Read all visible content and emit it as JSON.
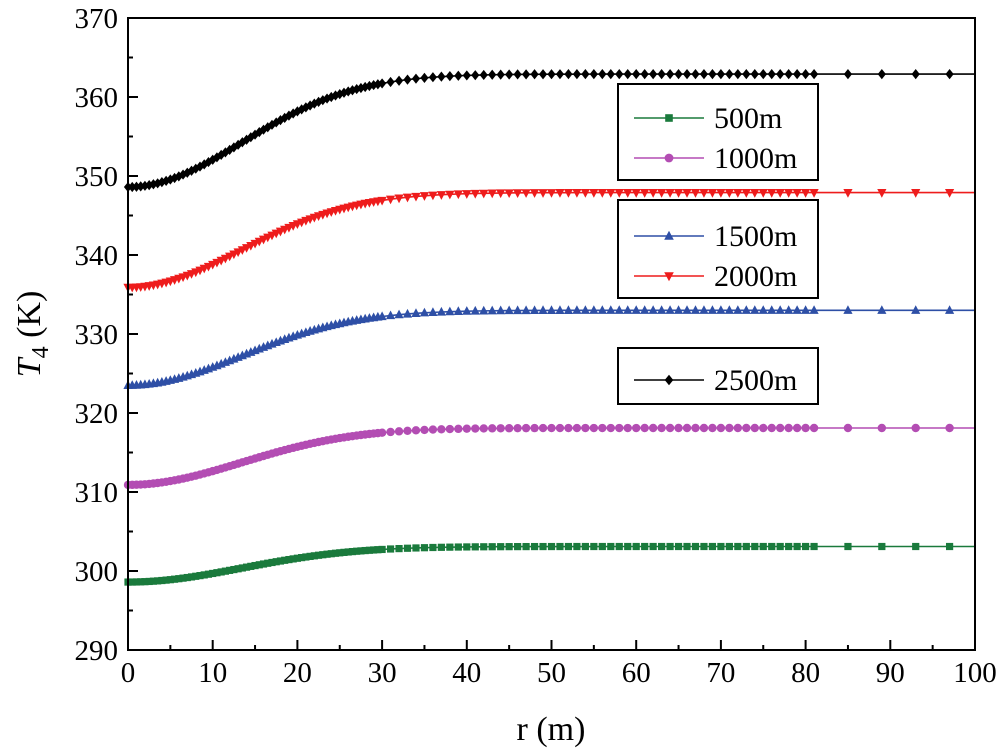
{
  "chart_data": {
    "type": "line",
    "title": "",
    "xlabel": "r (m)",
    "ylabel_main": "T",
    "ylabel_sub": "4",
    "ylabel_unit": " (K)",
    "xlim": [
      0,
      100
    ],
    "ylim": [
      290,
      370
    ],
    "xticks": [
      0,
      10,
      20,
      30,
      40,
      50,
      60,
      70,
      80,
      90,
      100
    ],
    "yticks": [
      290,
      300,
      310,
      320,
      330,
      340,
      350,
      360,
      370
    ],
    "grid": false,
    "x": [
      0,
      0.5,
      1,
      1.5,
      2,
      2.5,
      3,
      3.5,
      4,
      4.5,
      5,
      5.5,
      6,
      6.5,
      7,
      7.5,
      8,
      8.5,
      9,
      9.5,
      10,
      10.5,
      11,
      11.5,
      12,
      12.5,
      13,
      13.5,
      14,
      14.5,
      15,
      15.5,
      16,
      16.5,
      17,
      17.5,
      18,
      18.5,
      19,
      19.5,
      20,
      20.5,
      21,
      21.5,
      22,
      22.5,
      23,
      23.5,
      24,
      24.5,
      25,
      25.5,
      26,
      26.5,
      27,
      27.5,
      28,
      28.5,
      29,
      29.5,
      30,
      31,
      32,
      33,
      34,
      35,
      36,
      37,
      38,
      39,
      40,
      41,
      42,
      43,
      44,
      45,
      46,
      47,
      48,
      49,
      50,
      51,
      52,
      53,
      54,
      55,
      56,
      57,
      58,
      59,
      60,
      61,
      62,
      63,
      64,
      65,
      66,
      67,
      68,
      69,
      70,
      71,
      72,
      73,
      74,
      75,
      76,
      77,
      78,
      79,
      80,
      81,
      85,
      89,
      93,
      97
    ],
    "series": [
      {
        "name": "500m",
        "color": "#1a7a3c",
        "marker": "square",
        "base": 298.6,
        "rise": 4.5
      },
      {
        "name": "1000m",
        "color": "#b34db3",
        "marker": "circle",
        "base": 310.9,
        "rise": 7.2
      },
      {
        "name": "1500m",
        "color": "#2e4fa6",
        "marker": "triangle-up",
        "base": 323.5,
        "rise": 9.5
      },
      {
        "name": "2000m",
        "color": "#ee1c1c",
        "marker": "triangle-down",
        "base": 335.9,
        "rise": 12.0
      },
      {
        "name": "2500m",
        "color": "#000000",
        "marker": "diamond",
        "base": 348.6,
        "rise": 14.3
      }
    ],
    "legend": [
      {
        "group": 1,
        "items": [
          "500m",
          "1000m"
        ]
      },
      {
        "group": 2,
        "items": [
          "1500m",
          "2000m"
        ]
      },
      {
        "group": 3,
        "items": [
          "2500m"
        ]
      }
    ]
  }
}
